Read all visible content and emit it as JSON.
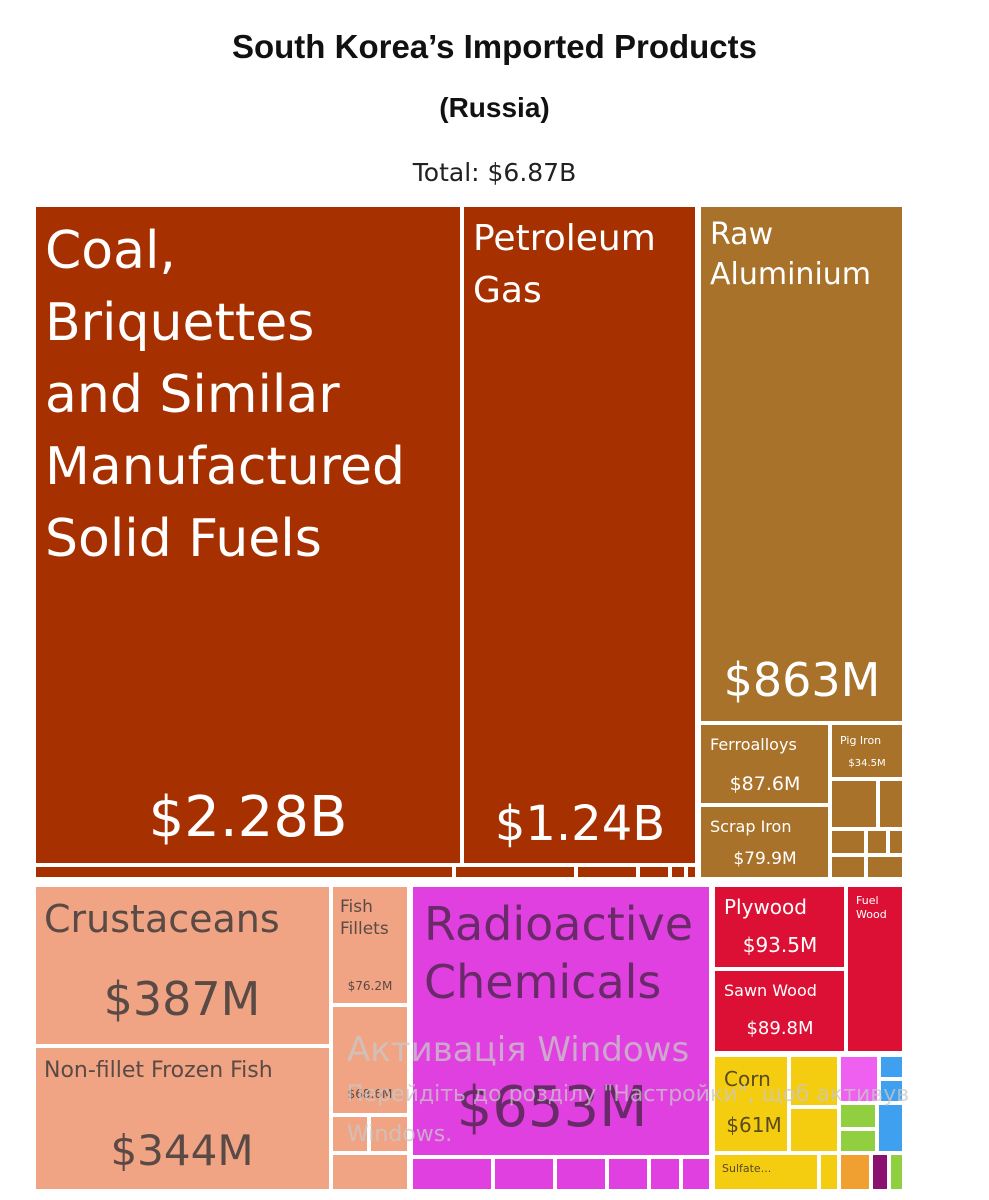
{
  "header": {
    "title": "South Korea’s Imported Products",
    "subtitle": "(Russia)",
    "total": "Total: $6.87B"
  },
  "watermark": {
    "line1": "Активація Windows",
    "line2": "Перейдіть до розділу \"Настройки\", щоб активув",
    "line3": "Windows."
  },
  "chart_data": {
    "type": "treemap",
    "title": "South Korea’s Imported Products",
    "subtitle": "(Russia)",
    "total": "Total: $6.87B",
    "colors": {
      "mineral": "#a63000",
      "metal": "#a8722a",
      "animal": "#f0a484",
      "chemical": "#e040e0",
      "wood": "#dc1035",
      "vegetable": "#f4cc10",
      "other_magenta": "#f060f0",
      "other_blue": "#40a0f0",
      "other_green": "#90d040",
      "other_orange": "#f0a030",
      "other_purple": "#8b1070"
    },
    "items": [
      {
        "name": "Coal, Briquettes and Similar Manufactured Solid Fuels",
        "label": "$2.28B",
        "value": 2280,
        "group": "mineral"
      },
      {
        "name": "Petroleum Gas",
        "label": "$1.24B",
        "value": 1240,
        "group": "mineral"
      },
      {
        "name": "Raw Aluminium",
        "label": "$863M",
        "value": 863,
        "group": "metal"
      },
      {
        "name": "Ferroalloys",
        "label": "$87.6M",
        "value": 87.6,
        "group": "metal"
      },
      {
        "name": "Pig Iron",
        "label": "$34.5M",
        "value": 34.5,
        "group": "metal"
      },
      {
        "name": "Scrap Iron",
        "label": "$79.9M",
        "value": 79.9,
        "group": "metal"
      },
      {
        "name": "Crustaceans",
        "label": "$387M",
        "value": 387,
        "group": "animal"
      },
      {
        "name": "Non-fillet Frozen Fish",
        "label": "$344M",
        "value": 344,
        "group": "animal"
      },
      {
        "name": "Fish Fillets",
        "label": "$76.2M",
        "value": 76.2,
        "group": "animal"
      },
      {
        "name": "",
        "label": "$68.6M",
        "value": 68.6,
        "group": "animal"
      },
      {
        "name": "Radioactive Chemicals",
        "label": "$653M",
        "value": 653,
        "group": "chemical"
      },
      {
        "name": "Plywood",
        "label": "$93.5M",
        "value": 93.5,
        "group": "wood"
      },
      {
        "name": "Sawn Wood",
        "label": "$89.8M",
        "value": 89.8,
        "group": "wood"
      },
      {
        "name": "Fuel Wood",
        "label": "",
        "value": null,
        "group": "wood"
      },
      {
        "name": "Corn",
        "label": "$61M",
        "value": 61,
        "group": "vegetable"
      },
      {
        "name": "Sulfate...",
        "label": "",
        "value": null,
        "group": "vegetable"
      }
    ]
  }
}
